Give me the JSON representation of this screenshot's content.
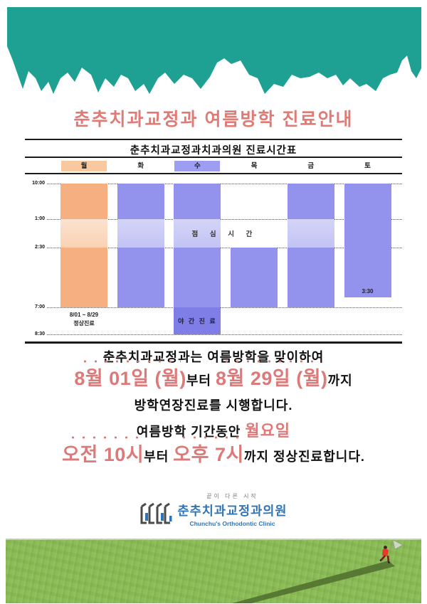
{
  "title": {
    "text": "춘추치과교정과 여름방학 진료안내",
    "color": "#DF7A75"
  },
  "header": {
    "torn_paper_color": "#1EA092"
  },
  "chart_data": {
    "type": "table",
    "title": "춘추치과교정과치과의원 진료시간표",
    "days": [
      {
        "label": "월",
        "highlight": "orange"
      },
      {
        "label": "화",
        "highlight": null
      },
      {
        "label": "수",
        "highlight": "purple"
      },
      {
        "label": "목",
        "highlight": null
      },
      {
        "label": "금",
        "highlight": null
      },
      {
        "label": "토",
        "highlight": null
      }
    ],
    "time_ticks": [
      "10:00",
      "1:00",
      "2:30",
      "7:00",
      "8:30"
    ],
    "lunch_label": "점 심 시 간",
    "columns": [
      {
        "day": "월",
        "palette": "orange",
        "segments": [
          {
            "from": "10:00",
            "to": "1:00",
            "kind": "work"
          },
          {
            "from": "1:00",
            "to": "2:30",
            "kind": "lunch"
          },
          {
            "from": "2:30",
            "to": "7:00",
            "kind": "work"
          }
        ],
        "notes": [
          "8/01 ~ 8/29",
          "정상진료"
        ]
      },
      {
        "day": "화",
        "palette": "purple",
        "segments": [
          {
            "from": "10:00",
            "to": "1:00",
            "kind": "work"
          },
          {
            "from": "1:00",
            "to": "2:30",
            "kind": "lunch"
          },
          {
            "from": "2:30",
            "to": "7:00",
            "kind": "work"
          }
        ]
      },
      {
        "day": "수",
        "palette": "purple",
        "segments": [
          {
            "from": "10:00",
            "to": "1:00",
            "kind": "work"
          },
          {
            "from": "1:00",
            "to": "2:30",
            "kind": "lunch"
          },
          {
            "from": "2:30",
            "to": "7:00",
            "kind": "work"
          },
          {
            "from": "7:00",
            "to": "8:30",
            "kind": "night",
            "label": "야 간 진 료"
          }
        ]
      },
      {
        "day": "목",
        "palette": "purple",
        "segments": [
          {
            "from": "2:30",
            "to": "7:00",
            "kind": "work"
          }
        ]
      },
      {
        "day": "금",
        "palette": "purple",
        "segments": [
          {
            "from": "10:00",
            "to": "1:00",
            "kind": "work"
          },
          {
            "from": "1:00",
            "to": "2:30",
            "kind": "lunch"
          },
          {
            "from": "2:30",
            "to": "7:00",
            "kind": "work"
          }
        ]
      },
      {
        "day": "토",
        "palette": "purple",
        "segments": [
          {
            "from": "10:00",
            "to": "3:30",
            "kind": "work",
            "end_label": "3:30"
          }
        ]
      }
    ],
    "colors": {
      "orange_work": "#F5AF80",
      "orange_lunch": "#FBDCC5",
      "purple_work": "#9393EE",
      "purple_lunch": "#CBCBF7",
      "purple_night": "#7E7EE6",
      "day_highlight_orange": "#F8C89F",
      "day_highlight_purple": "#9D9DF1"
    }
  },
  "announcement": {
    "accent_color": "#DB7A78",
    "lines": [
      {
        "parts": [
          {
            "text": "춘추치과교정과는 여름방학을 맞이하여",
            "style": "black-lg"
          }
        ]
      },
      {
        "parts": [
          {
            "text": "8월 01일 (월)",
            "style": "pink-xl",
            "dots": true
          },
          {
            "text": "부터 ",
            "style": "black-lg"
          },
          {
            "text": "8월 29일 (월)",
            "style": "pink-xl",
            "dots": true
          },
          {
            "text": "까지",
            "style": "black-lg"
          }
        ]
      },
      {
        "parts": [
          {
            "text": "방학연장진료를 시행합니다.",
            "style": "black-lg"
          }
        ]
      },
      {
        "parts": [
          {
            "text": "여름방학 기간동안 ",
            "style": "black-lg"
          },
          {
            "text": "월요일",
            "style": "pink-lg"
          }
        ]
      },
      {
        "parts": [
          {
            "text": "오전 10시",
            "style": "pink-xl",
            "dots": true
          },
          {
            "text": "부터 ",
            "style": "black-lg"
          },
          {
            "text": "오후 7시",
            "style": "pink-xl",
            "dots": true
          },
          {
            "text": "까지 정상진료합니다.",
            "style": "black-lg"
          }
        ]
      }
    ]
  },
  "logo": {
    "tagline": "끝이 다른 시작",
    "name": "춘추치과교정과의원",
    "subtitle": "Chunchu's Orthodontic Clinic",
    "blue": "#2E74B6"
  },
  "footer": {
    "grass_color": "#8CBD57"
  }
}
